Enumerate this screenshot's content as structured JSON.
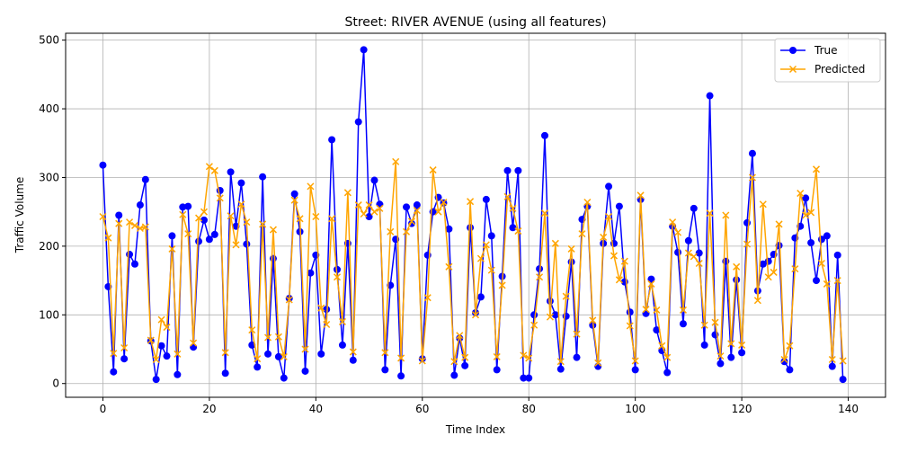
{
  "chart_data": {
    "type": "line",
    "title": "Street: RIVER AVENUE (using all features)",
    "xlabel": "Time Index",
    "ylabel": "Traffic Volume",
    "xlim": [
      -7,
      147
    ],
    "ylim": [
      -20,
      510
    ],
    "xticks": [
      0,
      20,
      40,
      60,
      80,
      100,
      120,
      140
    ],
    "yticks": [
      0,
      100,
      200,
      300,
      400,
      500
    ],
    "grid": true,
    "legend_position": "top-right",
    "x": [
      0,
      1,
      2,
      3,
      4,
      5,
      6,
      7,
      8,
      9,
      10,
      11,
      12,
      13,
      14,
      15,
      16,
      17,
      18,
      19,
      20,
      21,
      22,
      23,
      24,
      25,
      26,
      27,
      28,
      29,
      30,
      31,
      32,
      33,
      34,
      35,
      36,
      37,
      38,
      39,
      40,
      41,
      42,
      43,
      44,
      45,
      46,
      47,
      48,
      49,
      50,
      51,
      52,
      53,
      54,
      55,
      56,
      57,
      58,
      59,
      60,
      61,
      62,
      63,
      64,
      65,
      66,
      67,
      68,
      69,
      70,
      71,
      72,
      73,
      74,
      75,
      76,
      77,
      78,
      79,
      80,
      81,
      82,
      83,
      84,
      85,
      86,
      87,
      88,
      89,
      90,
      91,
      92,
      93,
      94,
      95,
      96,
      97,
      98,
      99,
      100,
      101,
      102,
      103,
      104,
      105,
      106,
      107,
      108,
      109,
      110,
      111,
      112,
      113,
      114,
      115,
      116,
      117,
      118,
      119,
      120,
      121,
      122,
      123,
      124,
      125,
      126,
      127,
      128,
      129,
      130,
      131,
      132,
      133,
      134,
      135,
      136,
      137,
      138,
      139
    ],
    "series": [
      {
        "name": "True",
        "color": "#0000ff",
        "marker": "circle",
        "values": [
          318,
          141,
          17,
          245,
          36,
          188,
          174,
          260,
          297,
          62,
          6,
          55,
          40,
          215,
          13,
          257,
          258,
          53,
          207,
          238,
          210,
          217,
          281,
          15,
          308,
          229,
          292,
          203,
          56,
          24,
          301,
          43,
          182,
          39,
          8,
          124,
          276,
          221,
          18,
          161,
          187,
          43,
          108,
          355,
          166,
          56,
          204,
          34,
          381,
          486,
          243,
          296,
          261,
          20,
          143,
          210,
          11,
          257,
          233,
          260,
          36,
          187,
          250,
          271,
          263,
          225,
          12,
          66,
          26,
          227,
          103,
          126,
          268,
          215,
          20,
          156,
          310,
          227,
          310,
          8,
          8,
          100,
          167,
          361,
          120,
          100,
          21,
          98,
          177,
          38,
          239,
          258,
          85,
          25,
          204,
          287,
          204,
          258,
          148,
          104,
          20,
          268,
          102,
          152,
          78,
          48,
          16,
          229,
          191,
          87,
          208,
          255,
          190,
          56,
          419,
          71,
          29,
          178,
          38,
          151,
          45,
          234,
          335,
          135,
          174,
          178,
          188,
          201,
          32,
          20,
          212,
          229,
          270,
          205,
          150,
          210,
          215,
          25,
          187,
          6
        ]
      },
      {
        "name": "Predicted",
        "color": "#ffa500",
        "marker": "x",
        "values": [
          243,
          212,
          44,
          233,
          52,
          235,
          230,
          226,
          228,
          63,
          35,
          93,
          82,
          196,
          43,
          246,
          218,
          59,
          241,
          250,
          316,
          310,
          270,
          45,
          244,
          202,
          261,
          235,
          78,
          36,
          232,
          67,
          224,
          68,
          39,
          122,
          267,
          240,
          50,
          287,
          243,
          110,
          86,
          240,
          155,
          90,
          278,
          46,
          260,
          247,
          260,
          250,
          255,
          45,
          221,
          323,
          37,
          221,
          236,
          252,
          33,
          125,
          311,
          250,
          264,
          170,
          32,
          70,
          38,
          265,
          100,
          182,
          202,
          165,
          39,
          143,
          272,
          255,
          222,
          41,
          37,
          85,
          155,
          248,
          97,
          204,
          32,
          127,
          196,
          72,
          218,
          264,
          92,
          30,
          213,
          243,
          186,
          151,
          178,
          84,
          33,
          274,
          108,
          145,
          107,
          55,
          38,
          235,
          220,
          107,
          190,
          185,
          175,
          85,
          248,
          89,
          40,
          245,
          58,
          170,
          56,
          203,
          300,
          121,
          261,
          155,
          162,
          232,
          35,
          55,
          167,
          277,
          245,
          249,
          312,
          175,
          145,
          35,
          150,
          33
        ]
      }
    ]
  }
}
